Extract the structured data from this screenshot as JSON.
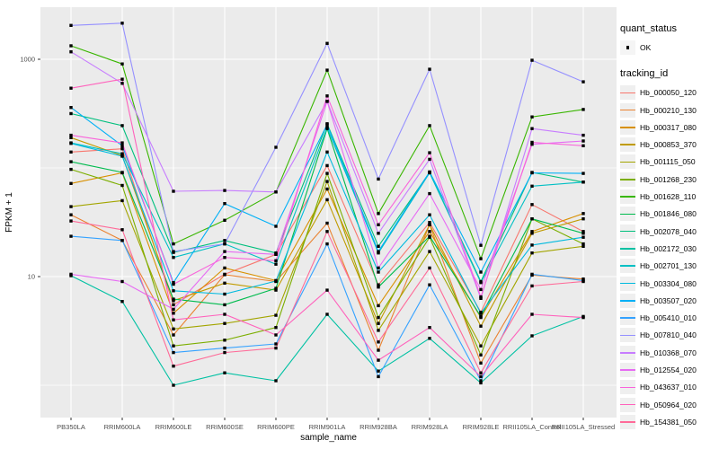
{
  "chart_data": {
    "type": "line",
    "title": "",
    "xlabel": "sample_name",
    "ylabel": "FPKM + 1",
    "y_scale": "log10",
    "y_ticks": [
      {
        "label": "1000",
        "value": 1000
      },
      {
        "label": "10",
        "value": 10
      }
    ],
    "y_minor_gridlines": [
      1,
      100
    ],
    "ylim_log10": [
      -0.32,
      3.47
    ],
    "grid": true,
    "legend_position": "right",
    "categories": [
      "PB350LA",
      "RRIM600LA",
      "RRIM600LE",
      "RRIM600SE",
      "RRIM600PE",
      "RRIM901LA",
      "RRIM928BA",
      "RRIM928LA",
      "RRIM928LE",
      "RRII105LA_Control",
      "RRII105LA_Stressed"
    ],
    "series": [
      {
        "id": "Hb_000050_120",
        "color": "#F8766D",
        "values": [
          140,
          150,
          5.5,
          10.5,
          16,
          105,
          8.4,
          31.5,
          4.7,
          46,
          26
        ]
      },
      {
        "id": "Hb_000210_130",
        "color": "#EA8331",
        "values": [
          37,
          21.5,
          2.9,
          10.4,
          9,
          31,
          2.1,
          30,
          1.6,
          10.3,
          9.5
        ]
      },
      {
        "id": "Hb_000317_080",
        "color": "#D89000",
        "values": [
          72,
          90,
          4.6,
          12,
          9.2,
          64,
          5.4,
          26,
          4.2,
          26,
          38
        ]
      },
      {
        "id": "Hb_000853_370",
        "color": "#C09B00",
        "values": [
          190,
          130,
          6.0,
          8.7,
          7.5,
          51,
          3.7,
          30,
          3.5,
          25,
          34
        ]
      },
      {
        "id": "Hb_001115_050",
        "color": "#A3A500",
        "values": [
          44,
          50,
          3.3,
          3.7,
          4.4,
          75,
          3.2,
          17,
          2.3,
          16.5,
          19
        ]
      },
      {
        "id": "Hb_001268_230",
        "color": "#7CAE00",
        "values": [
          97,
          69,
          2.3,
          2.6,
          3.4,
          89,
          4.2,
          23,
          1.9,
          34,
          20
        ]
      },
      {
        "id": "Hb_001628_110",
        "color": "#39B600",
        "values": [
          1330,
          905,
          20,
          33,
          60,
          795,
          38,
          245,
          14.6,
          295,
          345
        ]
      },
      {
        "id": "Hb_001846_080",
        "color": "#00BB4E",
        "values": [
          114,
          91,
          6.2,
          5.5,
          7.8,
          230,
          8.0,
          23.5,
          4.3,
          34,
          25
        ]
      },
      {
        "id": "Hb_002078_040",
        "color": "#00BF7D",
        "values": [
          316,
          245,
          16.7,
          21.5,
          16.5,
          255,
          19,
          91,
          9,
          91,
          74
        ]
      },
      {
        "id": "Hb_002172_030",
        "color": "#00C1A3",
        "values": [
          10.2,
          5.9,
          1.0,
          1.3,
          1.1,
          4.5,
          1.35,
          2.7,
          1.05,
          2.85,
          4.3
        ]
      },
      {
        "id": "Hb_002701_130",
        "color": "#00BFC4",
        "values": [
          170,
          135,
          15,
          20,
          13,
          235,
          16.5,
          90,
          8.8,
          68,
          74
        ]
      },
      {
        "id": "Hb_003304_080",
        "color": "#00BADE",
        "values": [
          168,
          128,
          7.4,
          6.9,
          9.1,
          140,
          11,
          37,
          4.6,
          19.5,
          23
        ]
      },
      {
        "id": "Hb_003507_020",
        "color": "#00B0F6",
        "values": [
          360,
          160,
          8.8,
          47,
          29,
          250,
          17,
          92,
          11,
          90,
          89
        ]
      },
      {
        "id": "Hb_005410_010",
        "color": "#35A2FF",
        "values": [
          23.5,
          21.5,
          2.0,
          2.2,
          2.4,
          20,
          1.2,
          8.4,
          1.1,
          10.5,
          9.2
        ]
      },
      {
        "id": "Hb_007810_040",
        "color": "#9590FF",
        "values": [
          2050,
          2150,
          17,
          20,
          155,
          1400,
          79,
          810,
          19.4,
          980,
          620
        ]
      },
      {
        "id": "Hb_010368_070",
        "color": "#C77CFF",
        "values": [
          1170,
          600,
          61,
          62,
          60,
          410,
          25,
          120,
          6.3,
          230,
          200
        ]
      },
      {
        "id": "Hb_012554_020",
        "color": "#E76BF3",
        "values": [
          10.5,
          9.0,
          5.0,
          17,
          16,
          410,
          12,
          58,
          7.6,
          165,
          177
        ]
      },
      {
        "id": "Hb_043637_010",
        "color": "#FA62DB",
        "values": [
          200,
          170,
          8.5,
          15,
          14,
          460,
          30,
          138,
          6.5,
          172,
          160
        ]
      },
      {
        "id": "Hb_050964_020",
        "color": "#FF62BC",
        "values": [
          542,
          655,
          4.0,
          4.5,
          2.9,
          7.5,
          1.7,
          3.4,
          1.2,
          4.5,
          4.2
        ]
      },
      {
        "id": "Hb_154381_050",
        "color": "#FF6A98",
        "values": [
          32.5,
          27,
          1.5,
          2.0,
          2.2,
          26,
          2.5,
          12,
          1.3,
          8.2,
          9.0
        ]
      }
    ],
    "legend": {
      "quant_status_title": "quant_status",
      "quant_status_items": [
        {
          "label": "OK",
          "marker": "black-point"
        }
      ],
      "tracking_title": "tracking_id"
    }
  },
  "colors": {
    "panel_bg": "#EBEBEB",
    "gridline": "#FFFFFF",
    "tick_label": "#4D4D4D",
    "axis_title": "#000000",
    "point": "#000000",
    "legend_key_bg": "#EFEFEF"
  }
}
